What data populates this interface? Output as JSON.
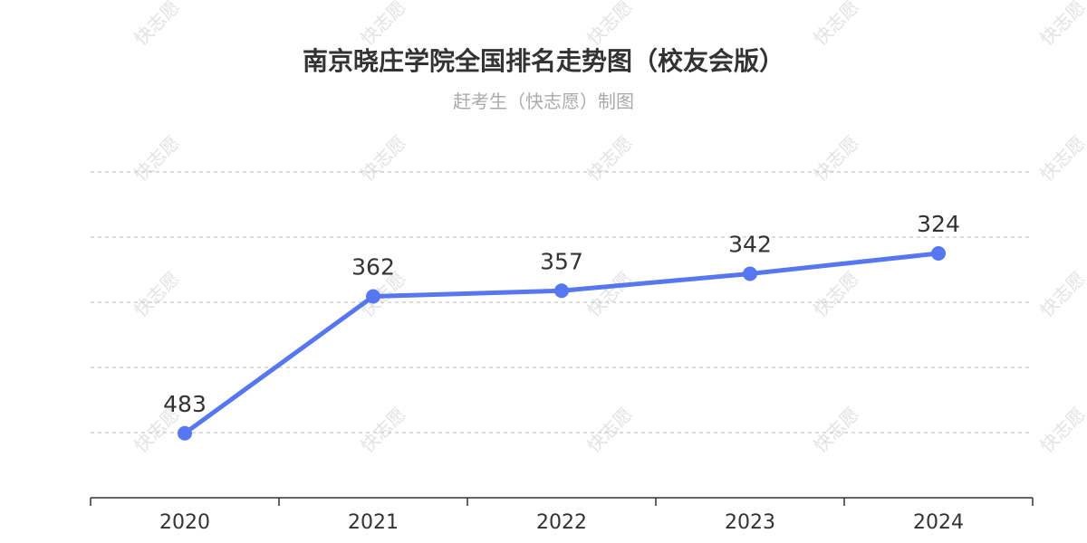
{
  "chart_data": {
    "type": "line",
    "title": "南京晓庄学院全国排名走势图（校友会版）",
    "subtitle": "赶考生（快志愿）制图",
    "watermark_text": "快志愿",
    "categories": [
      "2020",
      "2021",
      "2022",
      "2023",
      "2024"
    ],
    "series": [
      {
        "values": [
          483,
          362,
          357,
          342,
          324
        ],
        "color": "#5677f0"
      }
    ],
    "y_inverted": true,
    "ylim": [
      252,
      540
    ],
    "grid": true,
    "legend": "none",
    "colors": {
      "line": "#5677f0",
      "grid": "#c8c8c8",
      "axis": "#333333",
      "title": "#333333",
      "subtitle": "#aaaaaa",
      "watermark": "#d9d9d9"
    }
  }
}
